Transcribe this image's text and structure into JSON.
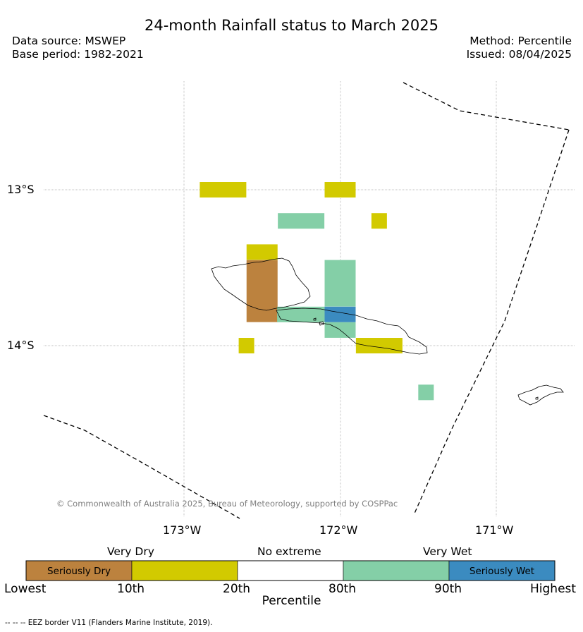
{
  "title": "24-month Rainfall status to March 2025",
  "data_source": "Data source: MSWEP",
  "base_period": "Base period: 1982-2021",
  "method": "Method: Percentile",
  "issued": "Issued: 08/04/2025",
  "map": {
    "lat_labels": [
      "13°S",
      "14°S"
    ],
    "lon_labels": [
      "173°W",
      "172°W",
      "171°W"
    ],
    "copyright": "© Commonwealth of Australia 2025, Bureau of Meteorology, supported by COSPPac",
    "cells": [
      {
        "lon": -172.75,
        "lat": -13.0,
        "category": "very-dry"
      },
      {
        "lon": -172.0,
        "lat": -13.0,
        "category": "very-dry"
      },
      {
        "lon": -172.25,
        "lat": -13.2,
        "category": "very-wet"
      },
      {
        "lon": -171.75,
        "lat": -13.2,
        "category": "very-dry"
      },
      {
        "lon": -172.5,
        "lat": -13.4,
        "category": "very-dry"
      },
      {
        "lon": -172.5,
        "lat": -13.65,
        "category": "seriously-dry"
      },
      {
        "lon": -172.0,
        "lat": -13.6,
        "category": "very-wet"
      },
      {
        "lon": -172.25,
        "lat": -13.8,
        "category": "very-wet"
      },
      {
        "lon": -172.0,
        "lat": -13.8,
        "category": "seriously-wet"
      },
      {
        "lon": -172.0,
        "lat": -13.9,
        "category": "very-wet"
      },
      {
        "lon": -172.6,
        "lat": -14.0,
        "category": "very-dry"
      },
      {
        "lon": -171.75,
        "lat": -14.0,
        "category": "very-dry"
      },
      {
        "lon": -171.45,
        "lat": -14.3,
        "category": "very-wet"
      }
    ]
  },
  "colorbar": {
    "categories": [
      "Very Dry",
      "No extreme",
      "Very Wet"
    ],
    "segments": [
      {
        "label": "Seriously Dry",
        "color": "#bc823e"
      },
      {
        "label": "",
        "color": "#d2ca00"
      },
      {
        "label": "",
        "color": "#ffffff"
      },
      {
        "label": "",
        "color": "#84cfa7"
      },
      {
        "label": "Seriously Wet",
        "color": "#3b8bc0"
      }
    ],
    "ticks": [
      "Lowest",
      "10th",
      "20th",
      "80th",
      "90th",
      "Highest"
    ],
    "xlabel": "Percentile"
  },
  "colors": {
    "seriously-dry": "#bc823e",
    "very-dry": "#d2ca00",
    "very-wet": "#84cfa7",
    "seriously-wet": "#3b8bc0"
  },
  "footnote": "-- -- -- EEZ border V11 (Flanders Marine Institute, 2019)."
}
